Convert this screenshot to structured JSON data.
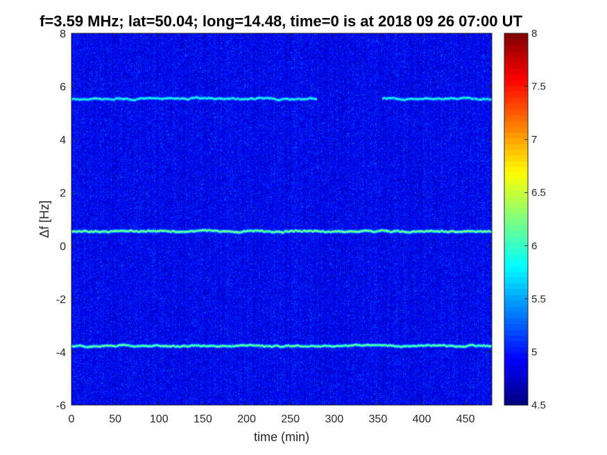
{
  "chart_data": {
    "type": "heatmap",
    "title": "f=3.59 MHz;  lat=50.04; long=14.48, time=0 is at 2018 09 26 07:00 UT",
    "xlabel": "time (min)",
    "ylabel": "Δf [Hz]",
    "xlim": [
      0,
      480
    ],
    "ylim": [
      -6,
      8
    ],
    "xticks": [
      0,
      50,
      100,
      150,
      200,
      250,
      300,
      350,
      400,
      450
    ],
    "xtick_labels": [
      "0",
      "50",
      "100",
      "150",
      "200",
      "250",
      "300",
      "350",
      "400",
      "450"
    ],
    "yticks": [
      -6,
      -4,
      -2,
      0,
      2,
      4,
      6,
      8
    ],
    "ytick_labels": [
      "-6",
      "-4",
      "-2",
      "0",
      "2",
      "4",
      "6",
      "8"
    ],
    "colormap": "jet",
    "clim": [
      4.5,
      8
    ],
    "colorbar_ticks": [
      4.5,
      5,
      5.5,
      6,
      6.5,
      7,
      7.5,
      8
    ],
    "colorbar_tick_labels": [
      "4.5",
      "5",
      "5.5",
      "6",
      "6.5",
      "7",
      "7.5",
      "8"
    ],
    "background_level": 4.9,
    "traces": [
      {
        "y_center": 5.55,
        "x_start": 0,
        "x_end": 280,
        "level": 6.0
      },
      {
        "y_center": 5.55,
        "x_start": 355,
        "x_end": 480,
        "level": 6.0
      },
      {
        "y_center": 0.55,
        "x_start": 0,
        "x_end": 480,
        "level": 6.4
      },
      {
        "y_center": -3.75,
        "x_start": 0,
        "x_end": 480,
        "level": 6.3
      }
    ]
  }
}
